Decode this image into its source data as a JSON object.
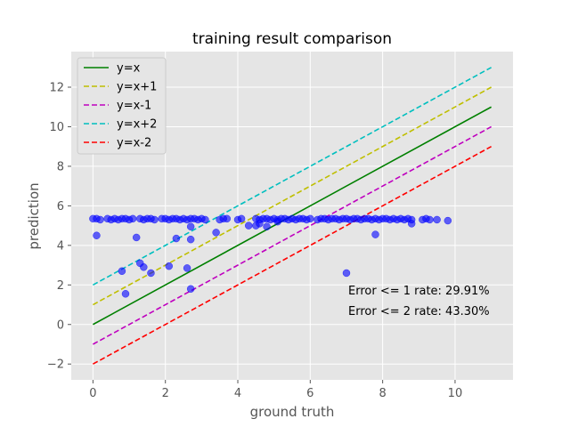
{
  "chart_data": {
    "type": "scatter",
    "title": "training result comparison",
    "xlabel": "ground truth",
    "ylabel": "prediction",
    "xlim": [
      -0.6,
      11.6
    ],
    "ylim": [
      -2.8,
      13.8
    ],
    "xticks": [
      0,
      2,
      4,
      6,
      8,
      10
    ],
    "yticks": [
      -2,
      0,
      2,
      4,
      6,
      8,
      10,
      12
    ],
    "grid": true,
    "legend_position": "upper-left",
    "background": "#e5e5e5",
    "lines": [
      {
        "name": "y=x",
        "offset": 0,
        "x": [
          0,
          11
        ],
        "color": "#008000",
        "style": "solid"
      },
      {
        "name": "y=x+1",
        "offset": 1,
        "x": [
          0,
          11
        ],
        "color": "#bfbf00",
        "style": "dashed"
      },
      {
        "name": "y=x-1",
        "offset": -1,
        "x": [
          0,
          11
        ],
        "color": "#bf00bf",
        "style": "dashed"
      },
      {
        "name": "y=x+2",
        "offset": 2,
        "x": [
          0,
          11
        ],
        "color": "#00bfbf",
        "style": "dashed"
      },
      {
        "name": "y=x-2",
        "offset": -2,
        "x": [
          0,
          11
        ],
        "color": "#ff0000",
        "style": "dashed"
      }
    ],
    "scatter": {
      "color": "#0000ff",
      "opacity": 0.6,
      "x": [
        0,
        0.1,
        0.2,
        0.4,
        0.5,
        0.6,
        0.7,
        0.8,
        0.9,
        1.0,
        1.1,
        1.3,
        1.4,
        1.5,
        1.6,
        1.7,
        1.9,
        2.0,
        2.1,
        2.2,
        2.3,
        2.4,
        2.5,
        2.6,
        2.7,
        2.8,
        2.9,
        3.0,
        3.1,
        3.5,
        3.6,
        3.7,
        4.0,
        4.1,
        4.5,
        4.6,
        4.7,
        4.8,
        4.9,
        5.0,
        5.1,
        5.2,
        5.3,
        5.4,
        5.5,
        5.6,
        5.7,
        5.8,
        5.9,
        6.0,
        6.2,
        6.3,
        6.4,
        6.5,
        6.6,
        6.7,
        6.8,
        6.9,
        7.0,
        7.1,
        7.2,
        7.3,
        7.4,
        7.5,
        7.6,
        7.7,
        7.8,
        7.9,
        8.0,
        8.1,
        8.2,
        8.3,
        8.4,
        8.5,
        8.6,
        8.7,
        8.8,
        9.1,
        9.2,
        9.3,
        9.5,
        9.8,
        0.1,
        1.2,
        0.8,
        0.9,
        1.3,
        1.4,
        1.6,
        2.1,
        2.3,
        2.6,
        2.7,
        2.7,
        3.4,
        4.3,
        4.5,
        4.6,
        4.8,
        5.1,
        7.8,
        8.8,
        7.0,
        2.7
      ],
      "y": [
        5.35,
        5.35,
        5.3,
        5.35,
        5.3,
        5.35,
        5.3,
        5.35,
        5.35,
        5.3,
        5.35,
        5.35,
        5.3,
        5.35,
        5.35,
        5.3,
        5.35,
        5.35,
        5.3,
        5.35,
        5.35,
        5.3,
        5.35,
        5.3,
        5.35,
        5.35,
        5.3,
        5.35,
        5.3,
        5.3,
        5.35,
        5.35,
        5.3,
        5.35,
        5.35,
        5.3,
        5.35,
        5.35,
        5.3,
        5.35,
        5.3,
        5.35,
        5.35,
        5.3,
        5.35,
        5.3,
        5.35,
        5.35,
        5.3,
        5.35,
        5.3,
        5.35,
        5.35,
        5.3,
        5.35,
        5.35,
        5.3,
        5.35,
        5.35,
        5.3,
        5.35,
        5.35,
        5.3,
        5.35,
        5.35,
        5.3,
        5.35,
        5.3,
        5.35,
        5.35,
        5.3,
        5.35,
        5.3,
        5.35,
        5.3,
        5.35,
        5.3,
        5.3,
        5.35,
        5.3,
        5.3,
        5.25,
        4.5,
        4.4,
        2.7,
        1.55,
        3.1,
        2.9,
        2.6,
        2.95,
        4.35,
        2.85,
        4.3,
        4.95,
        4.65,
        5.0,
        5.0,
        5.1,
        4.95,
        5.2,
        4.55,
        5.1,
        2.6,
        1.8
      ]
    },
    "annotations": [
      "Error <= 1 rate: 29.91%",
      "Error <= 2 rate: 43.30%"
    ]
  }
}
